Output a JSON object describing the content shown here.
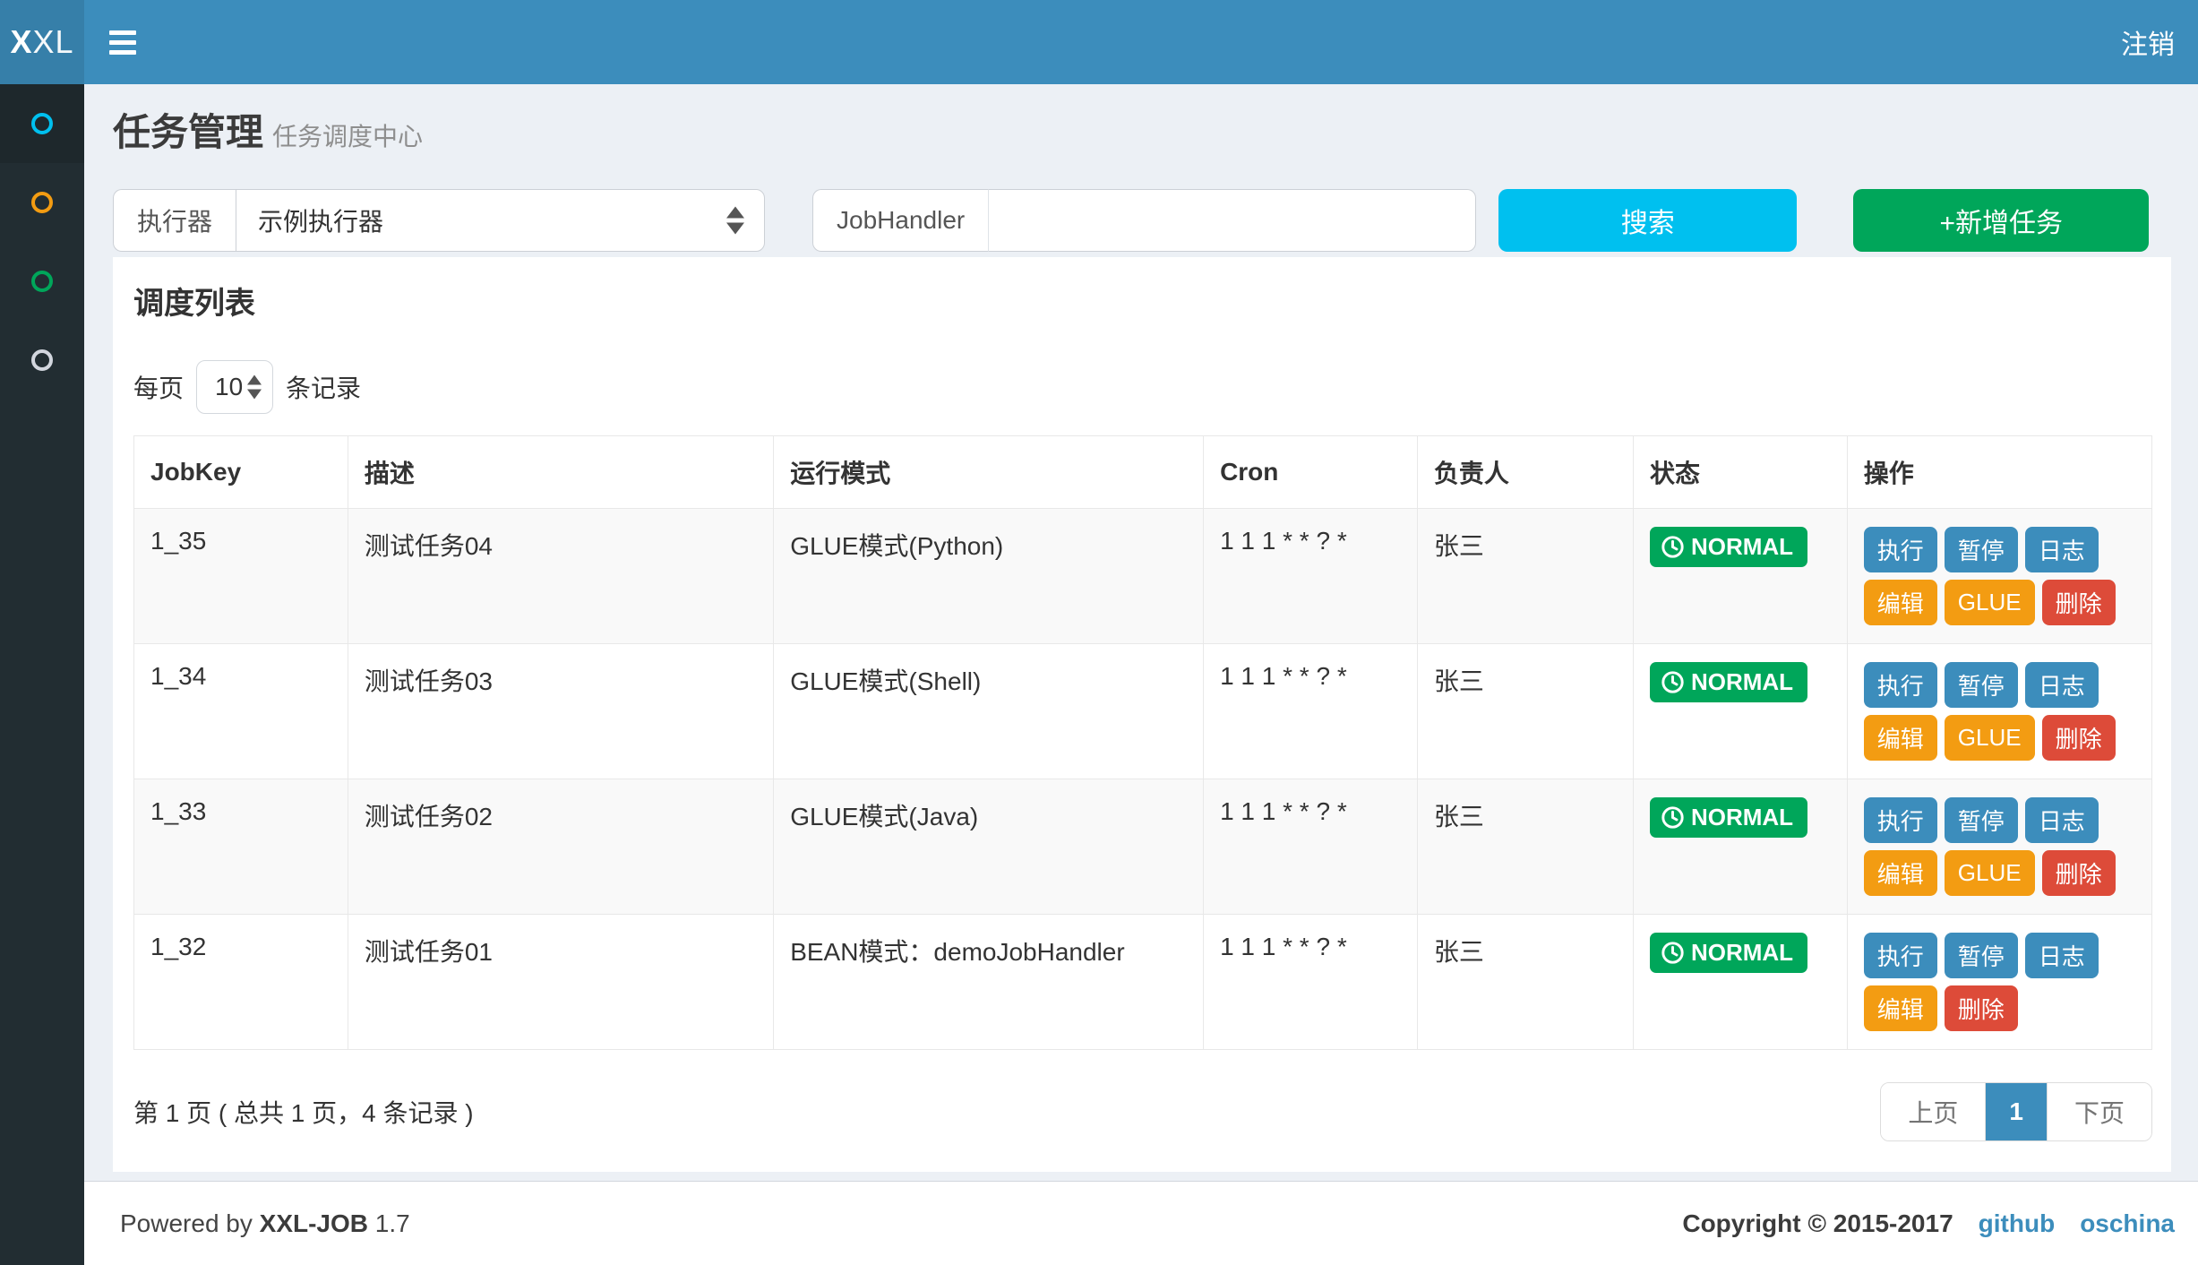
{
  "colors": {
    "navbar": "#3c8dbc",
    "logo_bg": "#367fa9",
    "sidebar": "#222d32",
    "sidebar_active": "#1e282c",
    "info": "#00c0ef",
    "success": "#00a65a",
    "primary": "#3c8dbc",
    "warning": "#f39c12",
    "danger": "#dd4b39",
    "page_bg": "#ecf0f5"
  },
  "navbar": {
    "logo_bold": "X",
    "logo_rest": "XL",
    "logout_label": "注销"
  },
  "sidebar": {
    "items": [
      {
        "id": "item-1",
        "icon": "circle-o-icon",
        "color": "#00c0ef",
        "active": true
      },
      {
        "id": "item-2",
        "icon": "circle-o-icon",
        "color": "#f39c12",
        "active": false
      },
      {
        "id": "item-3",
        "icon": "circle-o-icon",
        "color": "#00a65a",
        "active": false
      },
      {
        "id": "item-4",
        "icon": "circle-o-icon",
        "color": "#d2d6de",
        "active": false
      }
    ]
  },
  "page": {
    "title": "任务管理",
    "subtitle": "任务调度中心"
  },
  "filter": {
    "executor_label": "执行器",
    "executor_value": "示例执行器",
    "jobhandler_label": "JobHandler",
    "jobhandler_value": "",
    "search_label": "搜索",
    "add_label": "+新增任务"
  },
  "panel": {
    "title": "调度列表",
    "pagesize_prefix": "每页",
    "pagesize_value": "10",
    "pagesize_suffix": "条记录"
  },
  "table": {
    "columns": [
      "JobKey",
      "描述",
      "运行模式",
      "Cron",
      "负责人",
      "状态",
      "操作"
    ],
    "rows": [
      {
        "jobkey": "1_35",
        "desc": "测试任务04",
        "mode": "GLUE模式(Python)",
        "cron": "1 1 1 * * ? *",
        "owner": "张三",
        "status": "NORMAL",
        "actions": [
          {
            "label": "执行",
            "variant": "primary"
          },
          {
            "label": "暂停",
            "variant": "primary"
          },
          {
            "label": "日志",
            "variant": "primary"
          },
          {
            "label": "编辑",
            "variant": "warning"
          },
          {
            "label": "GLUE",
            "variant": "warning"
          },
          {
            "label": "删除",
            "variant": "danger"
          }
        ]
      },
      {
        "jobkey": "1_34",
        "desc": "测试任务03",
        "mode": "GLUE模式(Shell)",
        "cron": "1 1 1 * * ? *",
        "owner": "张三",
        "status": "NORMAL",
        "actions": [
          {
            "label": "执行",
            "variant": "primary"
          },
          {
            "label": "暂停",
            "variant": "primary"
          },
          {
            "label": "日志",
            "variant": "primary"
          },
          {
            "label": "编辑",
            "variant": "warning"
          },
          {
            "label": "GLUE",
            "variant": "warning"
          },
          {
            "label": "删除",
            "variant": "danger"
          }
        ]
      },
      {
        "jobkey": "1_33",
        "desc": "测试任务02",
        "mode": "GLUE模式(Java)",
        "cron": "1 1 1 * * ? *",
        "owner": "张三",
        "status": "NORMAL",
        "actions": [
          {
            "label": "执行",
            "variant": "primary"
          },
          {
            "label": "暂停",
            "variant": "primary"
          },
          {
            "label": "日志",
            "variant": "primary"
          },
          {
            "label": "编辑",
            "variant": "warning"
          },
          {
            "label": "GLUE",
            "variant": "warning"
          },
          {
            "label": "删除",
            "variant": "danger"
          }
        ]
      },
      {
        "jobkey": "1_32",
        "desc": "测试任务01",
        "mode": "BEAN模式：demoJobHandler",
        "cron": "1 1 1 * * ? *",
        "owner": "张三",
        "status": "NORMAL",
        "actions": [
          {
            "label": "执行",
            "variant": "primary"
          },
          {
            "label": "暂停",
            "variant": "primary"
          },
          {
            "label": "日志",
            "variant": "primary"
          },
          {
            "label": "编辑",
            "variant": "warning"
          },
          {
            "label": "删除",
            "variant": "danger"
          }
        ]
      }
    ]
  },
  "pagination": {
    "summary": "第 1 页 ( 总共 1 页，4 条记录 )",
    "prev": "上页",
    "current": "1",
    "next": "下页"
  },
  "footer": {
    "powered_prefix": "Powered by",
    "product": "XXL-JOB",
    "version": "1.7",
    "copyright": "Copyright © 2015-2017",
    "links": [
      "github",
      "oschina"
    ]
  }
}
